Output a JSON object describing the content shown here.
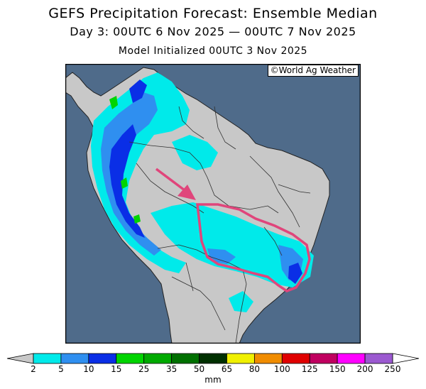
{
  "header": {
    "title": "GEFS Precipitation Forecast: Ensemble Median",
    "valid_period": "Day 3: 00UTC 6 Nov 2025 — 00UTC 7 Nov 2025",
    "init": "Model Initialized 00UTC 3 Nov 2025"
  },
  "map": {
    "credit": "©World Ag Weather",
    "colors": {
      "ocean": "#4f6b8a",
      "land": "#c8c8c8",
      "border": "#303030",
      "highlight": "#e0457b"
    },
    "annotation": {
      "shape": "ellipse-outline",
      "color": "#e0457b",
      "arrow": true
    }
  },
  "legend": {
    "units": "mm",
    "labels": [
      "2",
      "5",
      "10",
      "15",
      "25",
      "35",
      "50",
      "65",
      "80",
      "100",
      "125",
      "150",
      "200",
      "250"
    ],
    "colors": [
      "#00eaea",
      "#2f8ff0",
      "#0a2ee6",
      "#00d400",
      "#00aa00",
      "#007000",
      "#003000",
      "#f0f000",
      "#f08c00",
      "#e00000",
      "#c00060",
      "#ff00ff",
      "#9b59d0"
    ]
  }
}
